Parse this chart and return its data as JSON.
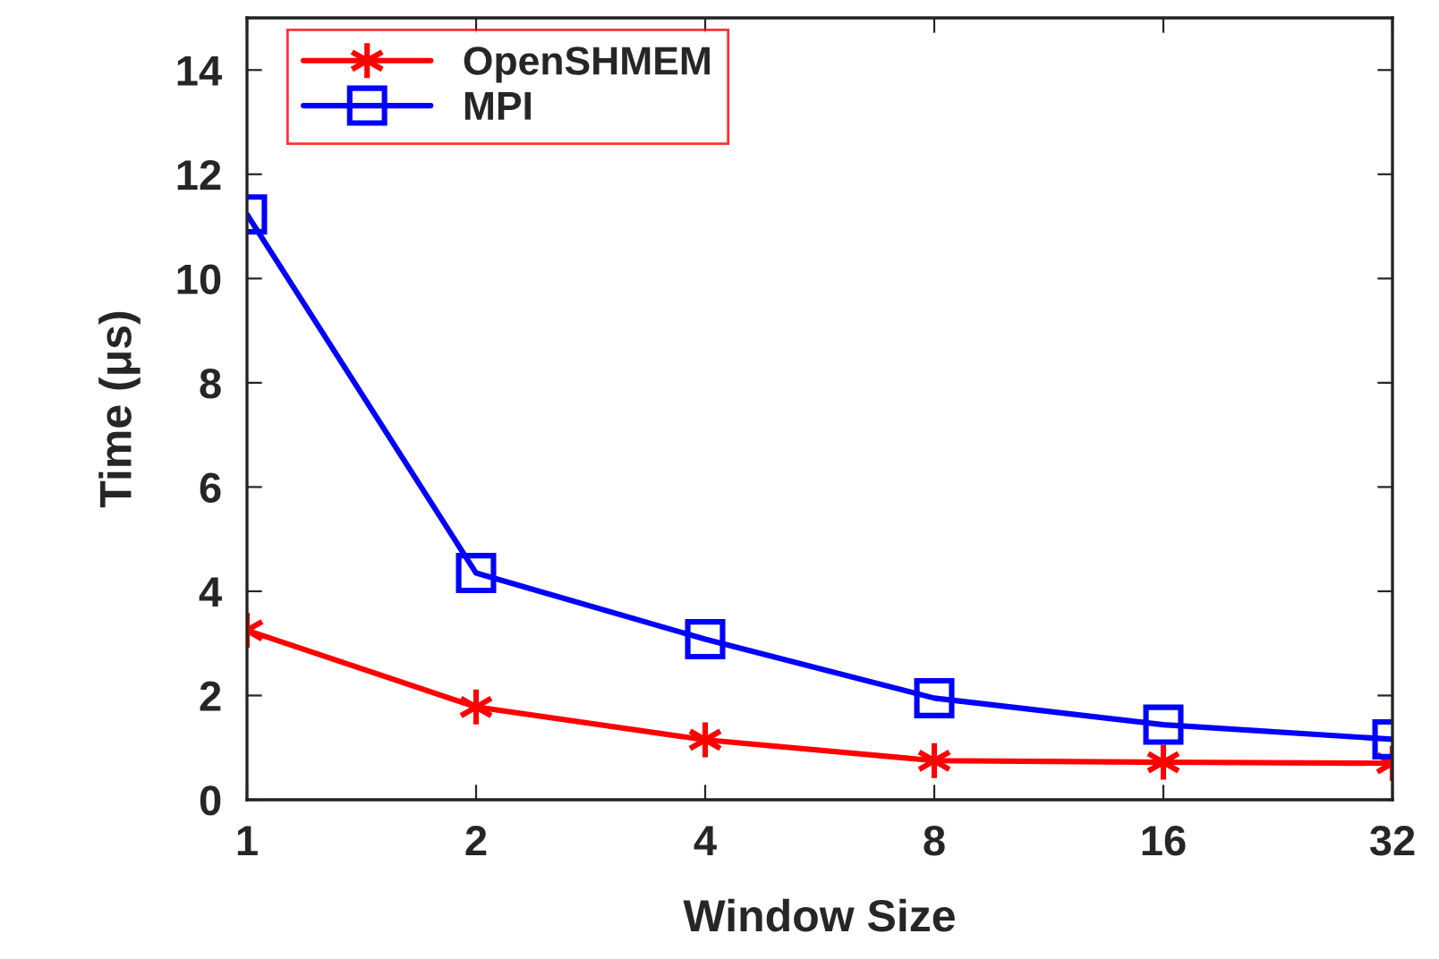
{
  "chart_data": {
    "type": "line",
    "xlabel": "Window Size",
    "ylabel": "Time (μs)",
    "categories": [
      "1",
      "2",
      "4",
      "8",
      "16",
      "32"
    ],
    "series": [
      {
        "name": "OpenSHMEM",
        "color": "#ff0000",
        "marker": "cross",
        "values": [
          3.25,
          1.78,
          1.15,
          0.75,
          0.72,
          0.7
        ]
      },
      {
        "name": "MPI",
        "color": "#0000ff",
        "marker": "square",
        "values": [
          11.23,
          4.35,
          3.08,
          1.95,
          1.44,
          1.16
        ]
      }
    ],
    "ylim": [
      0,
      15
    ],
    "yticks": [
      0,
      2,
      4,
      6,
      8,
      10,
      12,
      14
    ],
    "grid": false,
    "legend": "top left",
    "line_style": "solid"
  }
}
